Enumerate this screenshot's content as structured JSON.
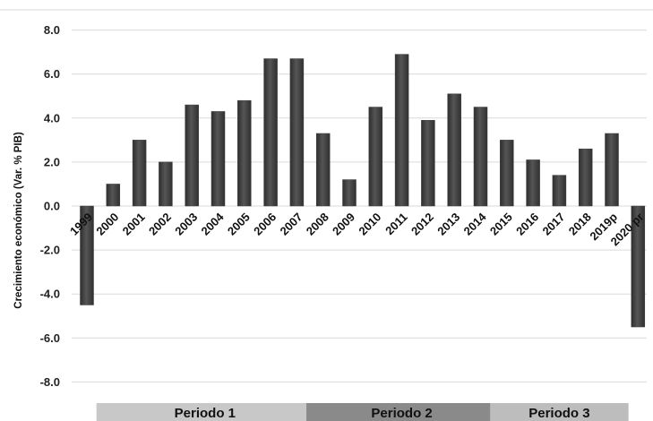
{
  "chart_data": {
    "type": "bar",
    "ylabel": "Crecimiento económico (Var. % PIB)",
    "ylim": [
      -8,
      8
    ],
    "yticks": [
      "8.0",
      "6.0",
      "4.0",
      "2.0",
      "0.0",
      "-2.0",
      "-4.0",
      "-6.0",
      "-8.0"
    ],
    "ytick_values": [
      8,
      6,
      4,
      2,
      0,
      -2,
      -4,
      -6,
      -8
    ],
    "grid": true,
    "categories": [
      "1999",
      "2000",
      "2001",
      "2002",
      "2003",
      "2004",
      "2005",
      "2006",
      "2007",
      "2008",
      "2009",
      "2010",
      "2011",
      "2012",
      "2013",
      "2014",
      "2015",
      "2016",
      "2017",
      "2018",
      "2019p",
      "2020 pr"
    ],
    "values": [
      -4.5,
      1.0,
      3.0,
      2.0,
      4.6,
      4.3,
      4.8,
      6.7,
      6.7,
      3.3,
      1.2,
      4.5,
      6.9,
      3.9,
      5.1,
      4.5,
      3.0,
      2.1,
      1.4,
      2.6,
      3.3,
      -5.5
    ],
    "bar_color": "#404040",
    "periods": [
      {
        "label": "Periodo 1",
        "start": "2000",
        "end": "2007",
        "color": "#c8c8c8"
      },
      {
        "label": "Periodo 2",
        "start": "2008",
        "end": "2014",
        "color": "#8a8a8a"
      },
      {
        "label": "Periodo 3",
        "start": "2015",
        "end": "2019p",
        "color": "#bdbdbd"
      }
    ]
  }
}
